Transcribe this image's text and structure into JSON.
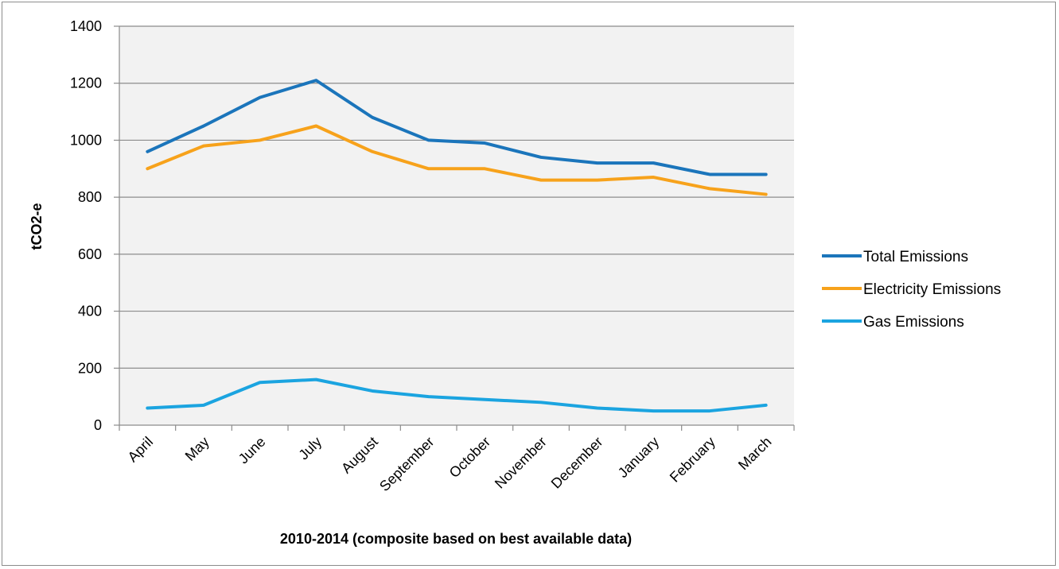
{
  "chart_data": {
    "type": "line",
    "title": "",
    "xlabel": "2010-2014 (composite based on best available data)",
    "ylabel": "tCO2-e",
    "ylim": [
      0,
      1400
    ],
    "yticks": [
      0,
      200,
      400,
      600,
      800,
      1000,
      1200,
      1400
    ],
    "grid": true,
    "legend_position": "right",
    "categories": [
      "April",
      "May",
      "June",
      "July",
      "August",
      "September",
      "October",
      "November",
      "December",
      "January",
      "February",
      "March"
    ],
    "series": [
      {
        "name": "Total Emissions",
        "color": "#1b75bb",
        "values": [
          960,
          1050,
          1150,
          1210,
          1080,
          1000,
          990,
          940,
          920,
          920,
          880,
          880
        ]
      },
      {
        "name": "Electricity Emissions",
        "color": "#f7a21b",
        "values": [
          900,
          980,
          1000,
          1050,
          960,
          900,
          900,
          860,
          860,
          870,
          830,
          810
        ]
      },
      {
        "name": "Gas Emissions",
        "color": "#1ba4e0",
        "values": [
          60,
          70,
          150,
          160,
          120,
          100,
          90,
          80,
          60,
          50,
          50,
          70
        ]
      }
    ],
    "plot_background": "#f2f2f2",
    "gridline_color": "#8c8c8c"
  }
}
